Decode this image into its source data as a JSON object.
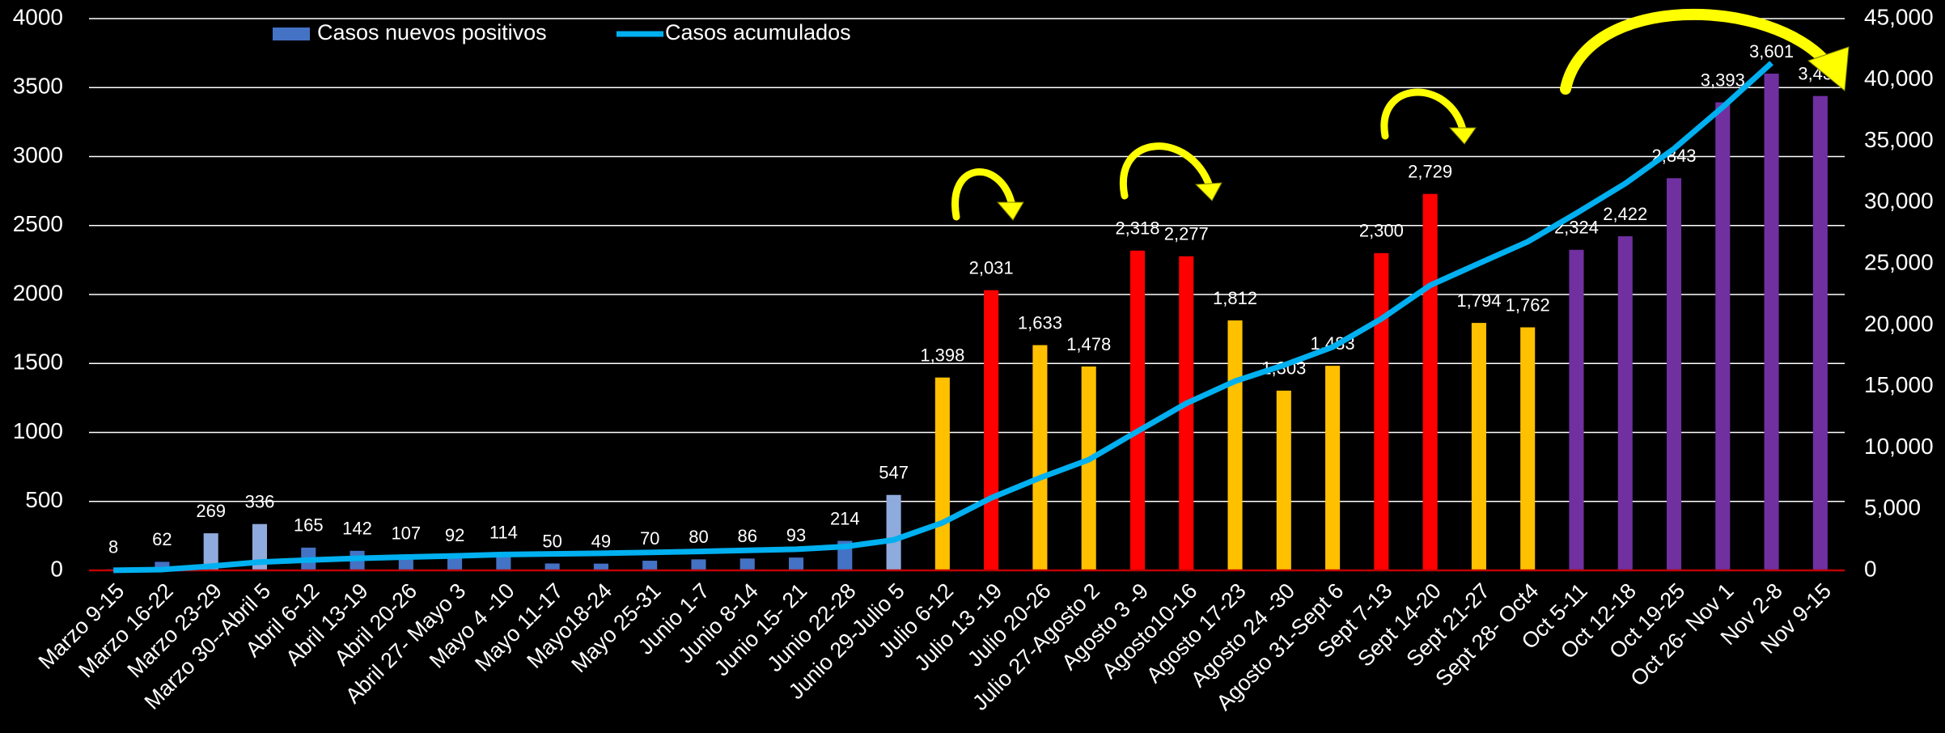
{
  "chart_data": {
    "type": "bar-line",
    "categories": [
      "Marzo 9-15",
      "Marzo 16-22",
      "Marzo 23-29",
      "Marzo 30--Abril 5",
      "Abril 6-12",
      "Abril 13-19",
      "Abril 20-26",
      "Abril 27- Mayo 3",
      "Mayo 4 -10",
      "Mayo 11-17",
      "Mayo18-24",
      "Mayo 25-31",
      "Junio  1-7",
      "Junio 8-14",
      "Junio 15- 21",
      "Junio 22-28",
      "Junio  29-Julio 5",
      "Julio 6-12",
      "Julio 13 -19",
      "Julio 20-26",
      "Julio 27-Agosto 2",
      "Agosto 3 -9",
      "Agosto10-16",
      "Agosto 17-23",
      "Agosto 24 -30",
      "Agosto 31-Sept 6",
      "Sept 7-13",
      "Sept 14-20",
      "Sept 21-27",
      "Sept 28- Oct4",
      "Oct 5-11",
      "Oct 12-18",
      "Oct 19-25",
      "Oct 26- Nov 1",
      "Nov 2-8",
      "Nov 9-15"
    ],
    "series": [
      {
        "name": "Casos nuevos positivos",
        "type": "bar",
        "color": "#4472c4",
        "colors": [
          "#4472c4",
          "#4472c4",
          "#8faadc",
          "#8faadc",
          "#4472c4",
          "#4472c4",
          "#4472c4",
          "#4472c4",
          "#4472c4",
          "#4472c4",
          "#4472c4",
          "#4472c4",
          "#4472c4",
          "#4472c4",
          "#4472c4",
          "#4472c4",
          "#8faadc",
          "#ffc000",
          "#ff0000",
          "#ffc000",
          "#ffc000",
          "#ff0000",
          "#ff0000",
          "#ffc000",
          "#ffc000",
          "#ffc000",
          "#ff0000",
          "#ff0000",
          "#ffc000",
          "#ffc000",
          "#7030a0",
          "#7030a0",
          "#7030a0",
          "#7030a0",
          "#7030a0",
          "#7030a0"
        ],
        "values": [
          8,
          62,
          269,
          336,
          165,
          142,
          107,
          92,
          114,
          50,
          49,
          70,
          80,
          86,
          93,
          214,
          547,
          1398,
          2031,
          1633,
          1478,
          2318,
          2277,
          1812,
          1303,
          1483,
          2300,
          2729,
          1794,
          1762,
          2324,
          2422,
          2843,
          3393,
          3601,
          3439
        ],
        "value_labels": [
          "8",
          "62",
          "269",
          "336",
          "165",
          "142",
          "107",
          "92",
          "114",
          "50",
          "49",
          "70",
          "80",
          "86",
          "93",
          "214",
          "547",
          "1,398",
          "2,031",
          "1,633",
          "1,478",
          "2,318",
          "2,277",
          "1,812",
          "1,303",
          "1,483",
          "2,300",
          "2,729",
          "1,794",
          "1,762",
          "2,324",
          "2,422",
          "2,843",
          "3,393",
          "3,601",
          "3,439"
        ]
      },
      {
        "name": "Casos acumulados",
        "type": "line",
        "axis": "y2",
        "color": "#00b0f0",
        "values": [
          8,
          70,
          339,
          675,
          840,
          982,
          1089,
          1181,
          1295,
          1345,
          1394,
          1464,
          1544,
          1630,
          1723,
          1937,
          2484,
          3882,
          5913,
          7546,
          9024,
          11342,
          13619,
          15431,
          16734,
          18217,
          20517,
          23246,
          25040,
          26802,
          29126,
          31548,
          34391,
          37784,
          41385,
          null
        ]
      }
    ],
    "ylim": [
      0,
      4000
    ],
    "yticks": [
      0,
      500,
      1000,
      1500,
      2000,
      2500,
      3000,
      3500,
      4000
    ],
    "y2lim": [
      0,
      45000
    ],
    "y2ticks": [
      0,
      {
        "value": 5000,
        "label": "5,000"
      },
      {
        "value": 10000,
        "label": "10,000"
      },
      {
        "value": 15000,
        "label": "15,000"
      },
      {
        "value": 20000,
        "label": "20,000"
      },
      {
        "value": 25000,
        "label": "25,000"
      },
      {
        "value": 30000,
        "label": "30,000"
      },
      {
        "value": 35000,
        "label": "35,000"
      },
      {
        "value": 40000,
        "label": "40,000"
      },
      {
        "value": 45000,
        "label": "45,000"
      }
    ],
    "grid": true,
    "legend": "top"
  }
}
